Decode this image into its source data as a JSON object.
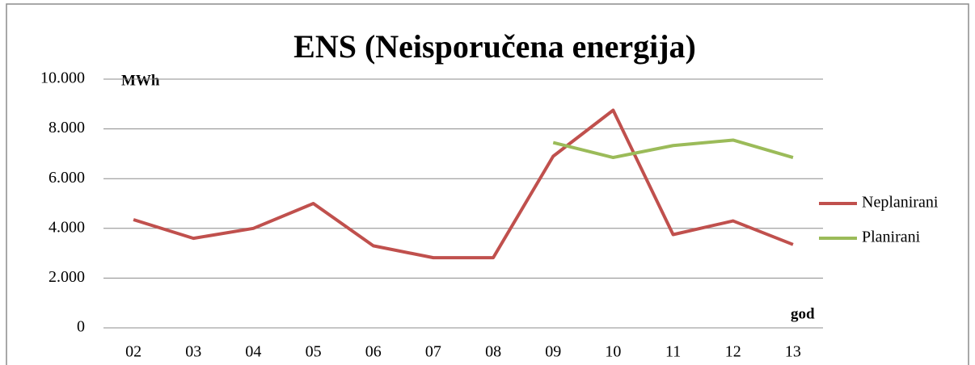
{
  "chart_data": {
    "type": "line",
    "title": "ENS (Neisporučena energija)",
    "y_label": "MWh",
    "x_label": "god",
    "categories": [
      "02",
      "03",
      "04",
      "05",
      "06",
      "07",
      "08",
      "09",
      "10",
      "11",
      "12",
      "13"
    ],
    "series": [
      {
        "name": "Neplanirani",
        "color": "#c0504d",
        "values": [
          4350,
          3600,
          4000,
          5000,
          3300,
          2820,
          2820,
          6900,
          8750,
          3750,
          4300,
          3350
        ]
      },
      {
        "name": "Planirani",
        "color": "#9bbb59",
        "values": [
          null,
          null,
          null,
          null,
          null,
          null,
          null,
          7450,
          6850,
          7330,
          7550,
          6850
        ]
      }
    ],
    "ylim": [
      0,
      10000
    ],
    "yticks": [
      0,
      {
        "value": 2000,
        "label": "2.000"
      },
      {
        "value": 4000,
        "label": "4.000"
      },
      {
        "value": 6000,
        "label": "6.000"
      },
      {
        "value": 8000,
        "label": "8.000"
      },
      {
        "value": 10000,
        "label": "10.000"
      }
    ],
    "grid": true,
    "legend": "right"
  }
}
